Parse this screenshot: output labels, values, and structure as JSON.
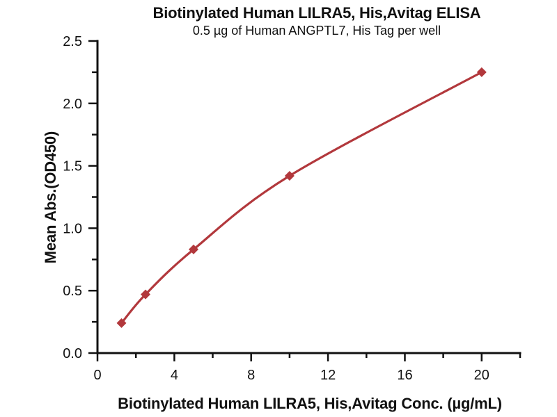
{
  "chart_data": {
    "type": "line",
    "title": "Biotinylated Human LILRA5, His,Avitag ELISA",
    "subtitle": "0.5 µg of Human ANGPTL7, His Tag per well",
    "xlabel": "Biotinylated Human LILRA5, His,Avitag Conc. (µg/mL)",
    "ylabel": "Mean Abs.(OD450)",
    "x": [
      1.25,
      2.5,
      5,
      10,
      20
    ],
    "y": [
      0.24,
      0.47,
      0.83,
      1.42,
      2.25
    ],
    "xlim": [
      0,
      22
    ],
    "ylim": [
      0,
      2.5
    ],
    "x_major_ticks": [
      0,
      4,
      8,
      12,
      16,
      20
    ],
    "x_minor_ticks": [
      2,
      6,
      10,
      14,
      18,
      22
    ],
    "x_tick_labels": [
      "0",
      "4",
      "8",
      "12",
      "16",
      "20"
    ],
    "y_major_ticks": [
      0,
      0.5,
      1.0,
      1.5,
      2.0,
      2.5
    ],
    "y_minor_ticks": [
      0.25,
      0.75,
      1.25,
      1.75,
      2.25
    ],
    "y_tick_labels": [
      "0.0",
      "0.5",
      "1.0",
      "1.5",
      "2.0",
      "2.5"
    ],
    "grid": false,
    "legend": null,
    "marker": "diamond",
    "marker_size": 7,
    "colors": {
      "line": "#B2383C",
      "marker": "#B2383C",
      "axis": "#111111",
      "tick_text": "#111111"
    }
  }
}
